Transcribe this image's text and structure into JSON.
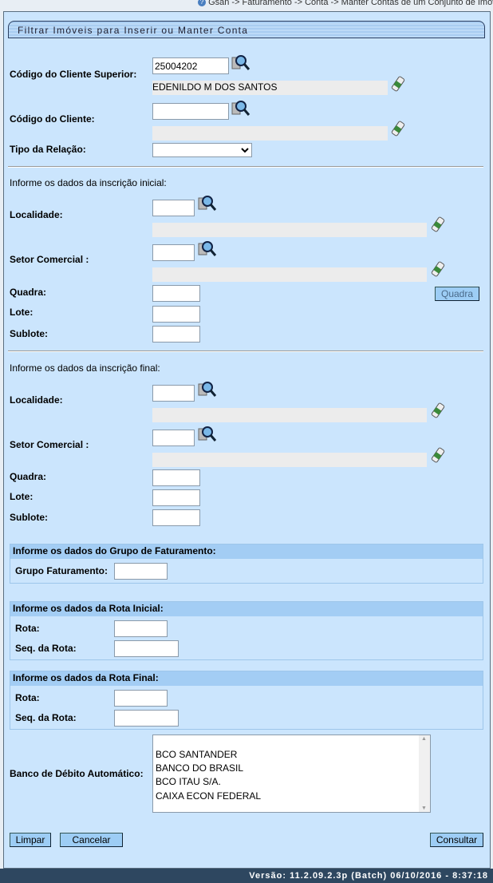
{
  "breadcrumb": "Gsan -> Faturamento -> Conta -> Manter Contas de um Conjunto de Imóveis",
  "title": "Filtrar Imóveis para Inserir ou Manter Conta",
  "cliente_superior": {
    "label": "Código do Cliente Superior:",
    "value": "25004202",
    "name": "EDENILDO M DOS SANTOS"
  },
  "cliente": {
    "label": "Código do Cliente:",
    "value": "",
    "name": ""
  },
  "tipo_relacao": {
    "label": "Tipo da Relação:",
    "value": ""
  },
  "inicial": {
    "heading": "Informe os dados da inscrição inicial:",
    "localidade": "Localidade:",
    "setor": "Setor Comercial :",
    "quadra": "Quadra:",
    "lote": "Lote:",
    "sublote": "Sublote:",
    "quadra_button": "Quadra"
  },
  "final": {
    "heading": "Informe os dados da inscrição final:",
    "localidade": "Localidade:",
    "setor": "Setor Comercial :",
    "quadra": "Quadra:",
    "lote": "Lote:",
    "sublote": "Sublote:"
  },
  "grupo": {
    "heading": "Informe os dados do Grupo de Faturamento:",
    "label": "Grupo Faturamento:"
  },
  "rota_inicial": {
    "heading": "Informe os dados da Rota Inicial:",
    "rota": "Rota:",
    "seq": "Seq. da Rota:"
  },
  "rota_final": {
    "heading": "Informe os dados da Rota Final:",
    "rota": "Rota:",
    "seq": "Seq. da Rota:"
  },
  "banco": {
    "label": "Banco de Débito Automático:",
    "options": [
      "BCO SANTANDER",
      "BANCO DO BRASIL",
      "BCO ITAU S/A.",
      "CAIXA ECON FEDERAL"
    ]
  },
  "buttons": {
    "limpar": "Limpar",
    "cancelar": "Cancelar",
    "consultar": "Consultar"
  },
  "footer": "Versão: 11.2.09.2.3p (Batch) 06/10/2016 - 8:37:18",
  "icons": {
    "search": "magnifier-icon",
    "clear": "eraser-icon"
  }
}
